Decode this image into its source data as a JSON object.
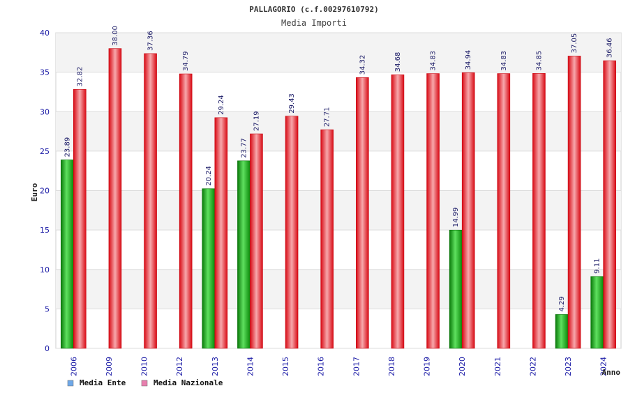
{
  "chart_data": {
    "type": "bar",
    "title": "PALLAGORIO (c.f.00297610792)",
    "subtitle": "Media Importi",
    "xlabel": "Anno",
    "ylabel": "Euro",
    "ylim": [
      0,
      40
    ],
    "yticks": [
      "0",
      "5",
      "10",
      "15",
      "20",
      "25",
      "30",
      "35",
      "40"
    ],
    "grid": true,
    "legend_position": "bottom-left",
    "categories": [
      "2006",
      "2009",
      "2010",
      "2012",
      "2013",
      "2014",
      "2015",
      "2016",
      "2017",
      "2018",
      "2019",
      "2020",
      "2021",
      "2022",
      "2023",
      "2024"
    ],
    "series": [
      {
        "name": "Media Ente",
        "legend_color": "#6fa8e8",
        "bar_color": "#10b010",
        "values": [
          23.89,
          null,
          null,
          null,
          20.24,
          23.77,
          null,
          null,
          null,
          null,
          null,
          14.99,
          null,
          null,
          4.29,
          9.11
        ],
        "labels": [
          "23.89",
          "",
          "",
          "",
          "20.24",
          "23.77",
          "",
          "",
          "",
          "",
          "",
          "14.99",
          "",
          "",
          "4.29",
          "9.11"
        ]
      },
      {
        "name": "Media Nazionale",
        "legend_color": "#e87fae",
        "bar_color": "#e8101a",
        "values": [
          32.82,
          38.0,
          37.36,
          34.79,
          29.24,
          27.19,
          29.43,
          27.71,
          34.32,
          34.68,
          34.83,
          34.94,
          34.83,
          34.85,
          37.05,
          36.46
        ],
        "labels": [
          "32.82",
          "38.00",
          "37.36",
          "34.79",
          "29.24",
          "27.19",
          "29.43",
          "27.71",
          "34.32",
          "34.68",
          "34.83",
          "34.94",
          "34.83",
          "34.85",
          "37.05",
          "36.46"
        ]
      }
    ]
  }
}
